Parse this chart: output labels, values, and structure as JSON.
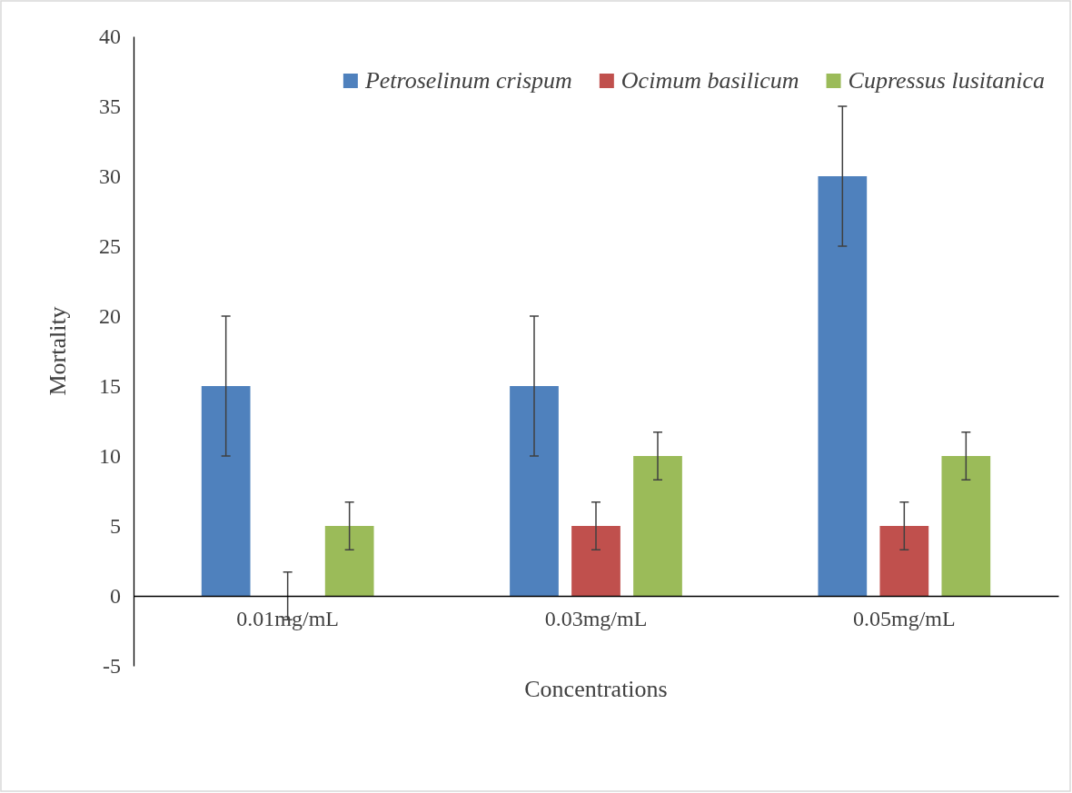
{
  "chart_data": {
    "type": "bar",
    "xlabel": "Concentrations",
    "ylabel": "Mortality",
    "categories": [
      "0.01mg/mL",
      "0.03mg/mL",
      "0.05mg/mL"
    ],
    "series": [
      {
        "name": "Petroselinum crispum",
        "color": "#4f81bd",
        "values": [
          15,
          15,
          30
        ],
        "errors": [
          5,
          5,
          5
        ]
      },
      {
        "name": "Ocimum basilicum",
        "color": "#c0504d",
        "values": [
          0,
          5,
          5
        ],
        "errors": [
          1.7,
          1.7,
          1.7
        ]
      },
      {
        "name": "Cupressus lusitanica",
        "color": "#9bbb59",
        "values": [
          5,
          10,
          10
        ],
        "errors": [
          1.7,
          1.7,
          1.7
        ]
      }
    ],
    "ylim": [
      -5,
      40
    ],
    "yticks": [
      -5,
      0,
      5,
      10,
      15,
      20,
      25,
      30,
      35,
      40
    ],
    "grid": false,
    "legend": "top right"
  }
}
